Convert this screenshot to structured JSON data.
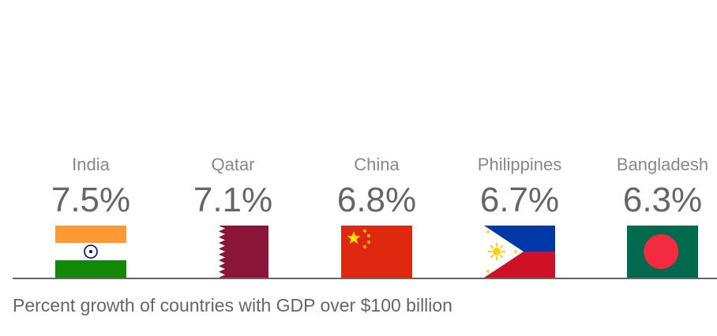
{
  "chart_data": {
    "type": "bar",
    "title": "",
    "xlabel": "",
    "ylabel": "",
    "categories": [
      "India",
      "Qatar",
      "China",
      "Philippines",
      "Bangladesh"
    ],
    "values": [
      7.5,
      7.1,
      6.8,
      6.7,
      6.3
    ],
    "value_labels": [
      "7.5%",
      "7.1%",
      "6.8%",
      "6.7%",
      "6.3%"
    ],
    "unit": "%",
    "grid": false,
    "legend": "none"
  },
  "caption": "Percent growth of countries with GDP over $100 billion",
  "flags": [
    {
      "country": "India",
      "icon": "india-flag-icon"
    },
    {
      "country": "Qatar",
      "icon": "qatar-flag-icon"
    },
    {
      "country": "China",
      "icon": "china-flag-icon"
    },
    {
      "country": "Philippines",
      "icon": "philippines-flag-icon"
    },
    {
      "country": "Bangladesh",
      "icon": "bangladesh-flag-icon"
    }
  ],
  "colors": {
    "name_text": "#888888",
    "value_text": "#666666",
    "baseline": "#666666",
    "india_saffron": "#ff9933",
    "india_green": "#138808",
    "india_chakra": "#000080",
    "qatar_maroon": "#8a1538",
    "china_red": "#de2910",
    "china_star": "#ffde00",
    "philippines_blue": "#0038a8",
    "philippines_red": "#ce1126",
    "philippines_sun": "#fcd116",
    "bangladesh_green": "#006a4e",
    "bangladesh_red": "#f42a41"
  }
}
